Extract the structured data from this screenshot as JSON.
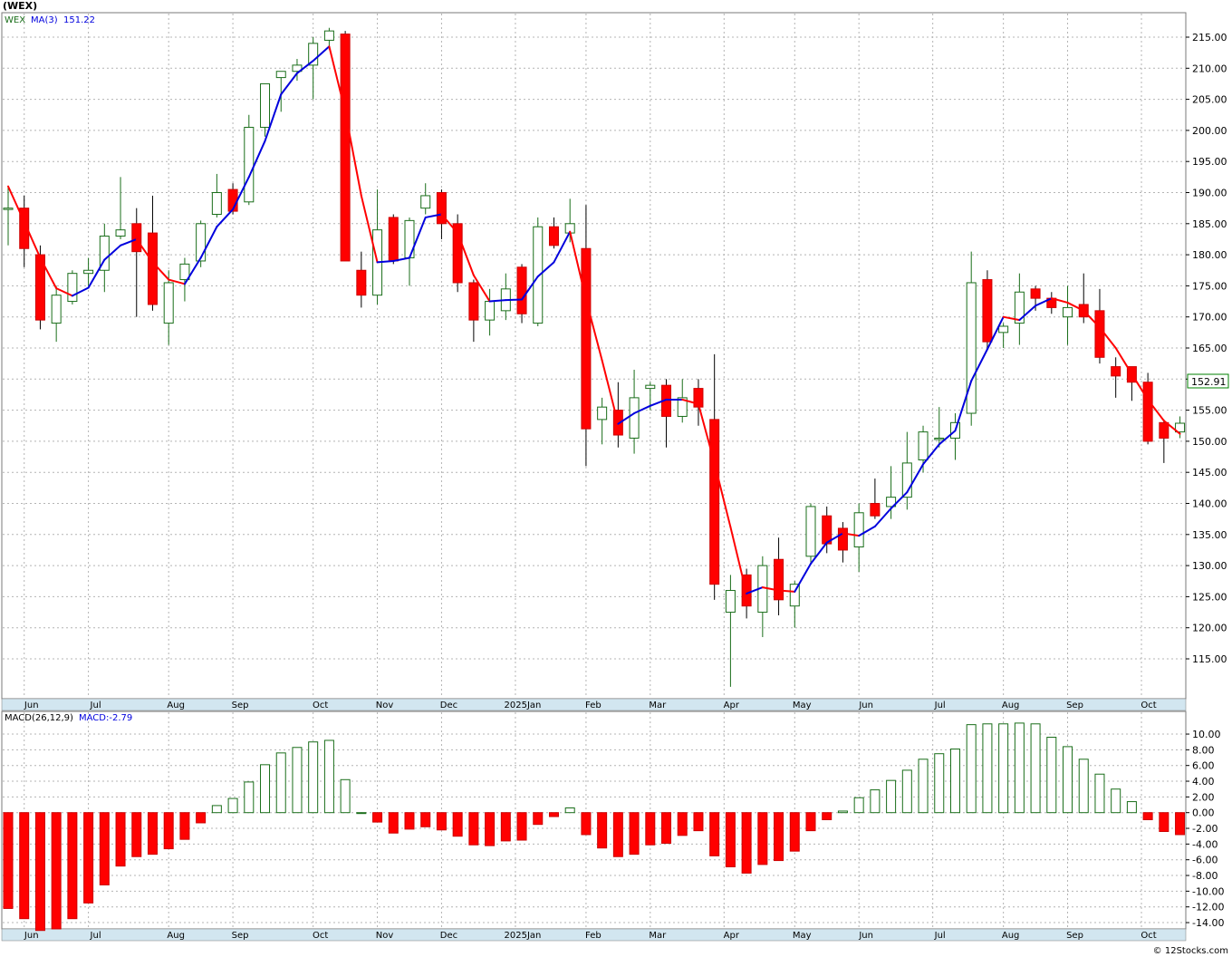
{
  "title": "(WEX)",
  "credit": "© 12Stocks.com",
  "months": [
    "Jun",
    "Jul",
    "Aug",
    "Sep",
    "Oct",
    "Nov",
    "Dec",
    "2025Jan",
    "Feb",
    "Mar",
    "Apr",
    "May",
    "Jun",
    "Jul",
    "Aug",
    "Sep",
    "Oct"
  ],
  "colors": {
    "up": "#1a6e1a",
    "down": "#ff0000",
    "ma_up": "#0000dd",
    "ma_down": "#ff0000",
    "grid": "#b4b4b4",
    "axis_band": "#d2e6f0",
    "price_tag": "#008000"
  },
  "price_panel": {
    "legend_symbol": "WEX",
    "legend_ma": "MA(3)",
    "legend_ma_value": "151.22",
    "last_price": "152.91",
    "y_ticks": [
      "215.00",
      "210.00",
      "205.00",
      "200.00",
      "195.00",
      "190.00",
      "185.00",
      "180.00",
      "175.00",
      "170.00",
      "165.00",
      "160.00",
      "155.00",
      "150.00",
      "145.00",
      "140.00",
      "135.00",
      "130.00",
      "125.00",
      "120.00",
      "115.00"
    ]
  },
  "macd_panel": {
    "legend_label": "MACD(26,12,9)",
    "legend_value": "MACD:-2.79",
    "y_ticks": [
      "10.00",
      "8.00",
      "6.00",
      "4.00",
      "2.00",
      "0.00",
      "-2.00",
      "-4.00",
      "-6.00",
      "-8.00",
      "-10.00",
      "-12.00",
      "-14.00"
    ]
  },
  "chart_data": {
    "type": "candlestick",
    "title": "(WEX)",
    "frequency": "weekly",
    "price_ylim": [
      110.5,
      218.5
    ],
    "macd_ylim": [
      -15.0,
      11.5
    ],
    "ma_period": 3,
    "candles": [
      {
        "o": 187.5,
        "h": 191.0,
        "l": 181.5,
        "c": 187.5
      },
      {
        "o": 187.5,
        "h": 189.5,
        "l": 178.0,
        "c": 181.0
      },
      {
        "o": 180.0,
        "h": 181.5,
        "l": 168.0,
        "c": 169.5
      },
      {
        "o": 169.0,
        "h": 175.0,
        "l": 166.0,
        "c": 173.5
      },
      {
        "o": 172.5,
        "h": 177.5,
        "l": 172.0,
        "c": 177.0
      },
      {
        "o": 177.0,
        "h": 179.5,
        "l": 175.0,
        "c": 177.5
      },
      {
        "o": 177.5,
        "h": 185.0,
        "l": 174.0,
        "c": 183.0
      },
      {
        "o": 183.0,
        "h": 192.5,
        "l": 182.5,
        "c": 184.0
      },
      {
        "o": 185.0,
        "h": 187.5,
        "l": 170.0,
        "c": 180.5
      },
      {
        "o": 183.5,
        "h": 189.5,
        "l": 171.0,
        "c": 172.0
      },
      {
        "o": 169.0,
        "h": 177.5,
        "l": 165.5,
        "c": 175.5
      },
      {
        "o": 176.0,
        "h": 179.5,
        "l": 172.5,
        "c": 178.5
      },
      {
        "o": 179.0,
        "h": 185.5,
        "l": 178.0,
        "c": 185.0
      },
      {
        "o": 186.5,
        "h": 193.0,
        "l": 186.0,
        "c": 190.0
      },
      {
        "o": 190.5,
        "h": 191.5,
        "l": 186.5,
        "c": 187.0
      },
      {
        "o": 188.5,
        "h": 202.5,
        "l": 188.0,
        "c": 200.5
      },
      {
        "o": 200.5,
        "h": 207.5,
        "l": 199.0,
        "c": 207.5
      },
      {
        "o": 208.5,
        "h": 209.5,
        "l": 203.0,
        "c": 209.5
      },
      {
        "o": 209.5,
        "h": 211.5,
        "l": 208.0,
        "c": 210.5
      },
      {
        "o": 210.5,
        "h": 215.0,
        "l": 205.0,
        "c": 214.0
      },
      {
        "o": 214.5,
        "h": 216.5,
        "l": 213.0,
        "c": 216.0
      },
      {
        "o": 215.5,
        "h": 216.0,
        "l": 179.0,
        "c": 179.0
      },
      {
        "o": 177.5,
        "h": 180.5,
        "l": 171.5,
        "c": 173.5
      },
      {
        "o": 173.5,
        "h": 190.5,
        "l": 172.0,
        "c": 184.0
      },
      {
        "o": 186.0,
        "h": 186.5,
        "l": 178.5,
        "c": 179.0
      },
      {
        "o": 179.5,
        "h": 186.0,
        "l": 175.0,
        "c": 185.5
      },
      {
        "o": 187.5,
        "h": 191.5,
        "l": 186.5,
        "c": 189.5
      },
      {
        "o": 190.0,
        "h": 190.5,
        "l": 182.5,
        "c": 185.0
      },
      {
        "o": 185.0,
        "h": 186.5,
        "l": 174.0,
        "c": 175.5
      },
      {
        "o": 175.5,
        "h": 176.0,
        "l": 166.0,
        "c": 169.5
      },
      {
        "o": 169.5,
        "h": 174.5,
        "l": 167.0,
        "c": 172.5
      },
      {
        "o": 171.0,
        "h": 177.0,
        "l": 169.5,
        "c": 174.5
      },
      {
        "o": 178.0,
        "h": 178.5,
        "l": 169.0,
        "c": 170.5
      },
      {
        "o": 169.0,
        "h": 186.0,
        "l": 168.5,
        "c": 184.5
      },
      {
        "o": 184.5,
        "h": 186.0,
        "l": 181.0,
        "c": 181.5
      },
      {
        "o": 183.5,
        "h": 189.0,
        "l": 182.0,
        "c": 185.0
      },
      {
        "o": 181.0,
        "h": 188.0,
        "l": 146.0,
        "c": 152.0
      },
      {
        "o": 153.5,
        "h": 157.0,
        "l": 149.5,
        "c": 155.5
      },
      {
        "o": 155.0,
        "h": 159.5,
        "l": 149.0,
        "c": 151.0
      },
      {
        "o": 150.5,
        "h": 161.5,
        "l": 148.0,
        "c": 157.0
      },
      {
        "o": 158.5,
        "h": 159.5,
        "l": 155.0,
        "c": 159.0
      },
      {
        "o": 159.0,
        "h": 160.0,
        "l": 149.0,
        "c": 154.0
      },
      {
        "o": 154.0,
        "h": 160.0,
        "l": 153.0,
        "c": 157.0
      },
      {
        "o": 158.5,
        "h": 160.0,
        "l": 152.5,
        "c": 155.5
      },
      {
        "o": 153.5,
        "h": 164.0,
        "l": 124.5,
        "c": 127.0
      },
      {
        "o": 122.5,
        "h": 128.5,
        "l": 110.5,
        "c": 126.0
      },
      {
        "o": 128.5,
        "h": 129.5,
        "l": 121.5,
        "c": 123.5
      },
      {
        "o": 122.5,
        "h": 131.5,
        "l": 118.5,
        "c": 130.0
      },
      {
        "o": 131.0,
        "h": 134.5,
        "l": 122.0,
        "c": 124.5
      },
      {
        "o": 123.5,
        "h": 127.5,
        "l": 120.0,
        "c": 127.0
      },
      {
        "o": 131.5,
        "h": 140.0,
        "l": 130.5,
        "c": 139.5
      },
      {
        "o": 138.0,
        "h": 139.5,
        "l": 132.0,
        "c": 133.5
      },
      {
        "o": 136.0,
        "h": 137.0,
        "l": 130.5,
        "c": 132.5
      },
      {
        "o": 133.0,
        "h": 140.0,
        "l": 129.0,
        "c": 138.5
      },
      {
        "o": 140.0,
        "h": 144.0,
        "l": 137.5,
        "c": 138.0
      },
      {
        "o": 139.5,
        "h": 146.0,
        "l": 137.5,
        "c": 141.0
      },
      {
        "o": 141.0,
        "h": 151.5,
        "l": 139.0,
        "c": 146.5
      },
      {
        "o": 147.0,
        "h": 152.5,
        "l": 145.0,
        "c": 151.5
      },
      {
        "o": 150.5,
        "h": 155.5,
        "l": 149.0,
        "c": 150.5
      },
      {
        "o": 150.5,
        "h": 154.5,
        "l": 147.0,
        "c": 153.0
      },
      {
        "o": 154.5,
        "h": 180.5,
        "l": 152.5,
        "c": 175.5
      },
      {
        "o": 176.0,
        "h": 177.5,
        "l": 165.0,
        "c": 166.0
      },
      {
        "o": 167.5,
        "h": 169.0,
        "l": 165.0,
        "c": 168.5
      },
      {
        "o": 169.0,
        "h": 177.0,
        "l": 165.5,
        "c": 174.0
      },
      {
        "o": 174.5,
        "h": 175.0,
        "l": 171.0,
        "c": 173.0
      },
      {
        "o": 173.0,
        "h": 174.0,
        "l": 170.5,
        "c": 171.5
      },
      {
        "o": 170.0,
        "h": 175.0,
        "l": 165.5,
        "c": 171.5
      },
      {
        "o": 172.0,
        "h": 177.0,
        "l": 169.0,
        "c": 170.0
      },
      {
        "o": 171.0,
        "h": 174.5,
        "l": 162.5,
        "c": 163.5
      },
      {
        "o": 162.0,
        "h": 163.5,
        "l": 157.0,
        "c": 160.5
      },
      {
        "o": 162.0,
        "h": 162.0,
        "l": 156.5,
        "c": 159.5
      },
      {
        "o": 159.5,
        "h": 161.0,
        "l": 149.5,
        "c": 150.0
      },
      {
        "o": 153.0,
        "h": 153.5,
        "l": 146.5,
        "c": 150.5
      },
      {
        "o": 151.5,
        "h": 154.0,
        "l": 150.5,
        "c": 152.9
      }
    ],
    "ma3": [
      191,
      185.3,
      179.5,
      174.6,
      173.4,
      174.7,
      179.2,
      181.5,
      182.5,
      178.8,
      176.0,
      175.3,
      179.5,
      184.5,
      187.3,
      192.5,
      198.3,
      205.8,
      209.2,
      211.2,
      213.5,
      203.0,
      189.5,
      178.8,
      179.0,
      179.5,
      186.0,
      186.5,
      183.5,
      176.7,
      172.5,
      172.7,
      172.8,
      176.5,
      178.8,
      183.7,
      172.8,
      163.0,
      152.8,
      154.5,
      155.7,
      156.7,
      156.7,
      156.0,
      146.5,
      136.2,
      125.5,
      126.5,
      126.0,
      125.8,
      130.3,
      133.7,
      135.2,
      134.8,
      136.3,
      139.2,
      141.8,
      146.3,
      149.5,
      151.7,
      159.7,
      164.8,
      170.0,
      169.5,
      171.8,
      173.0,
      172.3,
      171.0,
      168.3,
      165.0,
      160.8,
      156.7,
      153.3,
      151.2
    ],
    "macd": [
      -12.2,
      -13.5,
      -15.0,
      -14.8,
      -13.5,
      -11.5,
      -9.2,
      -6.8,
      -5.6,
      -5.3,
      -4.6,
      -3.4,
      -1.3,
      0.9,
      1.8,
      3.9,
      6.1,
      7.6,
      8.3,
      9.0,
      9.2,
      4.2,
      0.0,
      -1.2,
      -2.6,
      -2.1,
      -1.8,
      -2.2,
      -3.0,
      -4.1,
      -4.2,
      -3.6,
      -3.5,
      -1.5,
      -0.5,
      0.6,
      -2.8,
      -4.5,
      -5.6,
      -5.3,
      -4.1,
      -3.9,
      -2.9,
      -2.3,
      -5.5,
      -6.9,
      -7.7,
      -6.6,
      -6.1,
      -4.9,
      -2.3,
      -0.9,
      0.2,
      1.9,
      2.9,
      4.1,
      5.4,
      6.8,
      7.5,
      8.1,
      11.2,
      11.3,
      11.3,
      11.4,
      11.3,
      9.6,
      8.4,
      6.8,
      4.9,
      3.0,
      1.4,
      -0.9,
      -2.4,
      -2.8
    ]
  }
}
